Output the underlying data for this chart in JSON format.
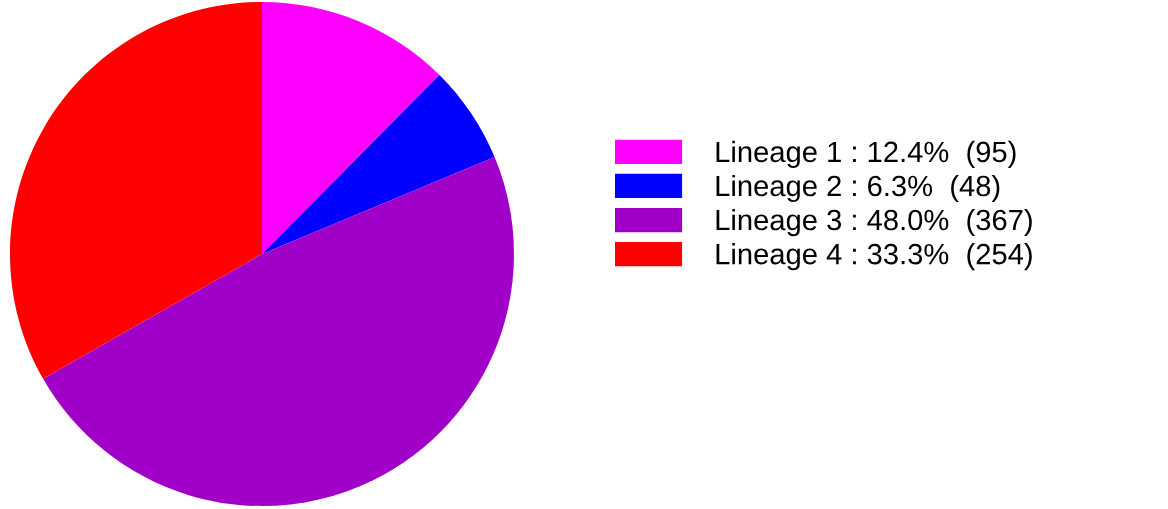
{
  "chart_data": {
    "type": "pie",
    "categories": [
      "Lineage 1 : 12.4%  (95)",
      "Lineage 2 : 6.3%  (48)",
      "Lineage 3 : 48.0%  (367)",
      "Lineage 4 : 33.3%  (254)"
    ],
    "values": [
      95,
      48,
      367,
      254
    ],
    "colors": [
      "#ff00ff",
      "#0000ff",
      "#a000c8",
      "#ff0000"
    ],
    "legend": "right"
  }
}
